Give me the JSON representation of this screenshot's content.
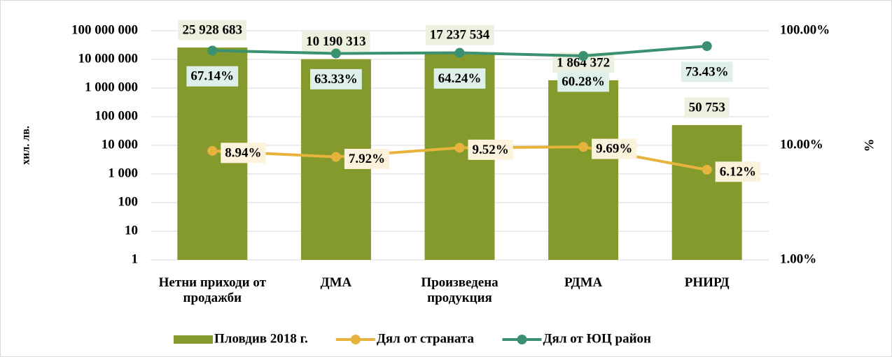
{
  "chart_data": {
    "type": "bar",
    "y_label": "хил. лв.",
    "y2_label": "%",
    "categories": [
      "Нетни приходи от продажби",
      "ДМА",
      "Произведена продукция",
      "РДМА",
      "РНИРД"
    ],
    "log_scale": true,
    "ylim": [
      1,
      100000000
    ],
    "yticks": [
      1,
      10,
      100,
      {
        "value": 1000,
        "label": "1 000"
      },
      {
        "value": 10000,
        "label": "10 000"
      },
      {
        "value": 100000,
        "label": "100 000"
      },
      {
        "value": 1000000,
        "label": "1 000 000"
      },
      {
        "value": 10000000,
        "label": "10 000 000"
      },
      {
        "value": 100000000,
        "label": "100 000 000"
      }
    ],
    "y2lim": [
      1,
      100
    ],
    "y2ticks": [
      {
        "value": 1,
        "label": "1.00%"
      },
      {
        "value": 10,
        "label": "10.00%"
      },
      {
        "value": 100,
        "label": "100.00%"
      }
    ],
    "legend": "bottom",
    "series": [
      {
        "name": "Пловдив 2018 г.",
        "type": "bar",
        "color": "#849a2c",
        "values": [
          25928683,
          10190313,
          17237534,
          1864372,
          50753
        ],
        "value_labels": [
          "25 928 683",
          "10 190 313",
          "17 237 534",
          "1 864 372",
          "50 753"
        ]
      },
      {
        "name": "Дял от страната",
        "type": "line",
        "axis": "y2",
        "color": "#e6b33c",
        "values": [
          8.94,
          7.92,
          9.52,
          9.69,
          6.12
        ],
        "value_labels": [
          "8.94%",
          "7.92%",
          "9.52%",
          "9.69%",
          "6.12%"
        ]
      },
      {
        "name": "Дял от ЮЦ район",
        "type": "line",
        "axis": "y2",
        "color": "#3a9070",
        "values": [
          67.14,
          63.33,
          64.24,
          60.28,
          73.43
        ],
        "value_labels": [
          "67.14%",
          "63.33%",
          "64.24%",
          "60.28%",
          "73.43%"
        ]
      }
    ]
  }
}
